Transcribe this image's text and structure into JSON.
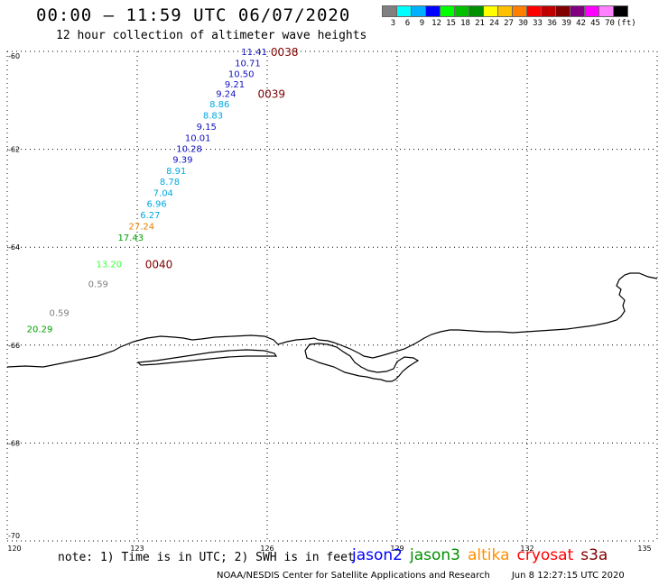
{
  "title": "00:00 – 11:59 UTC 06/07/2020",
  "subtitle": "12 hour collection of altimeter wave heights",
  "scale": {
    "colors": [
      "#808080",
      "#00ffff",
      "#00b0ff",
      "#0000ff",
      "#00ff00",
      "#00c000",
      "#009000",
      "#ffff00",
      "#ffc000",
      "#ff8000",
      "#ff0000",
      "#c00000",
      "#800000",
      "#800080",
      "#ff00ff",
      "#ff80ff",
      "#000000"
    ],
    "labels": [
      "3",
      "6",
      "9",
      "12",
      "15",
      "18",
      "21",
      "24",
      "27",
      "30",
      "33",
      "36",
      "39",
      "42",
      "45",
      "70",
      "(ft)"
    ]
  },
  "axes": {
    "lat_labels": [
      "-60",
      "-62",
      "-64",
      "-66",
      "-68",
      "-70"
    ],
    "lon_labels": [
      "120",
      "123",
      "126",
      "129",
      "132",
      "135"
    ]
  },
  "observations": [
    {
      "value": "11.41",
      "color": "#1010c0",
      "lon": 125.7,
      "lat": -60.0
    },
    {
      "value": "10.71",
      "color": "#1010c0",
      "lon": 125.55,
      "lat": -60.23
    },
    {
      "value": "10.50",
      "color": "#1010c0",
      "lon": 125.4,
      "lat": -60.45
    },
    {
      "value": "9.21",
      "color": "#1010c0",
      "lon": 125.25,
      "lat": -60.66
    },
    {
      "value": "9.24",
      "color": "#1010c0",
      "lon": 125.05,
      "lat": -60.86
    },
    {
      "value": "8.86",
      "color": "#00a8e0",
      "lon": 124.9,
      "lat": -61.07
    },
    {
      "value": "8.83",
      "color": "#00a8e0",
      "lon": 124.75,
      "lat": -61.3
    },
    {
      "value": "9.15",
      "color": "#1010c0",
      "lon": 124.6,
      "lat": -61.53
    },
    {
      "value": "10.01",
      "color": "#1010c0",
      "lon": 124.4,
      "lat": -61.76
    },
    {
      "value": "10.28",
      "color": "#1010c0",
      "lon": 124.2,
      "lat": -61.98
    },
    {
      "value": "9.39",
      "color": "#1010c0",
      "lon": 124.05,
      "lat": -62.2
    },
    {
      "value": "8.91",
      "color": "#00a8e0",
      "lon": 123.9,
      "lat": -62.43
    },
    {
      "value": "8.78",
      "color": "#00a8e0",
      "lon": 123.75,
      "lat": -62.65
    },
    {
      "value": "7.04",
      "color": "#00a8e0",
      "lon": 123.6,
      "lat": -62.88
    },
    {
      "value": "6.96",
      "color": "#00a8e0",
      "lon": 123.45,
      "lat": -63.1
    },
    {
      "value": "6.27",
      "color": "#00a8e0",
      "lon": 123.3,
      "lat": -63.33
    },
    {
      "value": "27.24",
      "color": "#e08000",
      "lon": 123.1,
      "lat": -63.56
    },
    {
      "value": "17.43",
      "color": "#00a000",
      "lon": 122.85,
      "lat": -63.79
    },
    {
      "value": "13.20",
      "color": "#40ff40",
      "lon": 122.35,
      "lat": -64.34
    },
    {
      "value": "0.59",
      "color": "#808080",
      "lon": 122.1,
      "lat": -64.74
    },
    {
      "value": "0.59",
      "color": "#808080",
      "lon": 121.2,
      "lat": -65.33
    },
    {
      "value": "20.29",
      "color": "#00a000",
      "lon": 120.75,
      "lat": -65.66
    }
  ],
  "time_labels": [
    {
      "value": "0038",
      "lon": 126.4,
      "lat": -60.0
    },
    {
      "value": "0039",
      "lon": 126.1,
      "lat": -60.86
    },
    {
      "value": "0040",
      "lon": 123.5,
      "lat": -64.34
    }
  ],
  "time_color": "#800000",
  "note": "note: 1) Time is in UTC; 2) SWH is in feet",
  "satellites": [
    {
      "name": "jason2",
      "color": "#0000ff"
    },
    {
      "name": "jason3",
      "color": "#009000"
    },
    {
      "name": "altika",
      "color": "#ff9000"
    },
    {
      "name": "cryosat",
      "color": "#ff0000"
    },
    {
      "name": "s3a",
      "color": "#800000"
    }
  ],
  "credit": "NOAA/NESDIS Center for Satellite Applications and Research",
  "timestamp": "Jun  8 12:27:15 UTC 2020"
}
